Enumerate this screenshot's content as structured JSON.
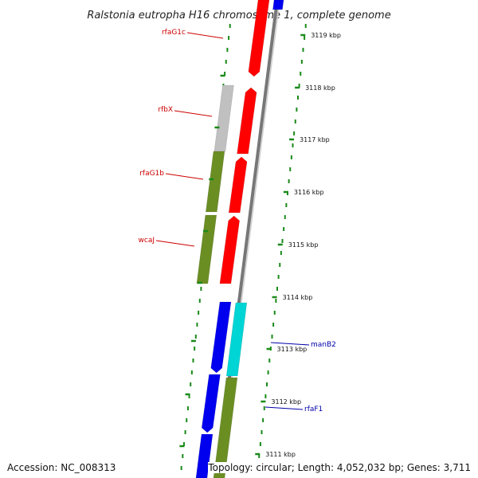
{
  "title": "Ralstonia eutropha H16 chromosome 1, complete genome",
  "footer": {
    "accession": "Accession: NC_008313",
    "summary": "Topology: circular; Length: 4,052,032 bp; Genes: 3,711"
  },
  "colors": {
    "red": "#ff0000",
    "blue": "#0000ee",
    "olive": "#6b8e23",
    "gray": "#c0c0c0",
    "cyan": "#00d5d5",
    "backbone": "#888888",
    "dots": "#1a8a1a",
    "red_label": "#cc0000",
    "blue_label": "#0000aa"
  },
  "ticks": [
    {
      "label": "3119 kbp"
    },
    {
      "label": "3118 kbp"
    },
    {
      "label": "3117 kbp"
    },
    {
      "label": "3116 kbp"
    },
    {
      "label": "3115 kbp"
    },
    {
      "label": "3114 kbp"
    },
    {
      "label": "3113 kbp"
    },
    {
      "label": "3112 kbp"
    },
    {
      "label": "3111 kbp"
    }
  ],
  "gene_labels": [
    {
      "text": "rfaG1c",
      "color": "red"
    },
    {
      "text": "rfbX",
      "color": "red"
    },
    {
      "text": "rfaG1b",
      "color": "red"
    },
    {
      "text": "wcaJ",
      "color": "red"
    },
    {
      "text": "manB2",
      "color": "blue"
    },
    {
      "text": "rfaF1",
      "color": "blue"
    }
  ]
}
